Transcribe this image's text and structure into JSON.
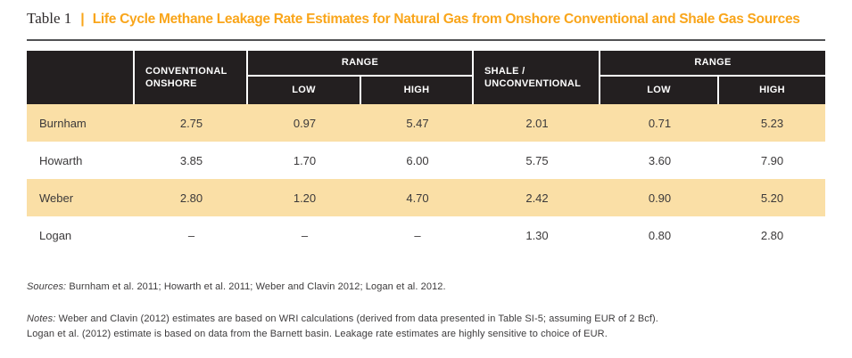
{
  "title": {
    "label": "Table 1",
    "separator": "|",
    "text": "Life Cycle Methane Leakage Rate Estimates for Natural Gas from Onshore Conventional and Shale Gas Sources"
  },
  "colors": {
    "accent_orange": "#F9A51A",
    "header_black": "#231F20",
    "row_tan": "#FADFA6",
    "rule_gray": "#515254",
    "text_dark": "#3B393A"
  },
  "table": {
    "header": {
      "conventional": "CONVENTIONAL\nONSHORE",
      "range1": "RANGE",
      "low1": "LOW",
      "high1": "HIGH",
      "shale": "SHALE /\nUNCONVENTIONAL",
      "range2": "RANGE",
      "low2": "LOW",
      "high2": "HIGH"
    },
    "rows": [
      {
        "name": "Burnham",
        "conventional": "2.75",
        "low1": "0.97",
        "high1": "5.47",
        "shale": "2.01",
        "low2": "0.71",
        "high2": "5.23"
      },
      {
        "name": "Howarth",
        "conventional": "3.85",
        "low1": "1.70",
        "high1": "6.00",
        "shale": "5.75",
        "low2": "3.60",
        "high2": "7.90"
      },
      {
        "name": "Weber",
        "conventional": "2.80",
        "low1": "1.20",
        "high1": "4.70",
        "shale": "2.42",
        "low2": "0.90",
        "high2": "5.20"
      },
      {
        "name": "Logan",
        "conventional": "–",
        "low1": "–",
        "high1": "–",
        "shale": "1.30",
        "low2": "0.80",
        "high2": "2.80"
      }
    ]
  },
  "footer": {
    "sources_label": "Sources:",
    "sources_text": "Burnham et al. 2011; Howarth et al. 2011; Weber and Clavin 2012; Logan et al. 2012.",
    "notes_label": "Notes:",
    "notes_text": "Weber and Clavin (2012) estimates are based on WRI calculations (derived from data presented in Table SI-5; assuming EUR of 2 Bcf).",
    "notes_line2": "Logan et al. (2012) estimate is based on data from the Barnett basin.  Leakage rate estimates are highly sensitive to choice of EUR."
  }
}
